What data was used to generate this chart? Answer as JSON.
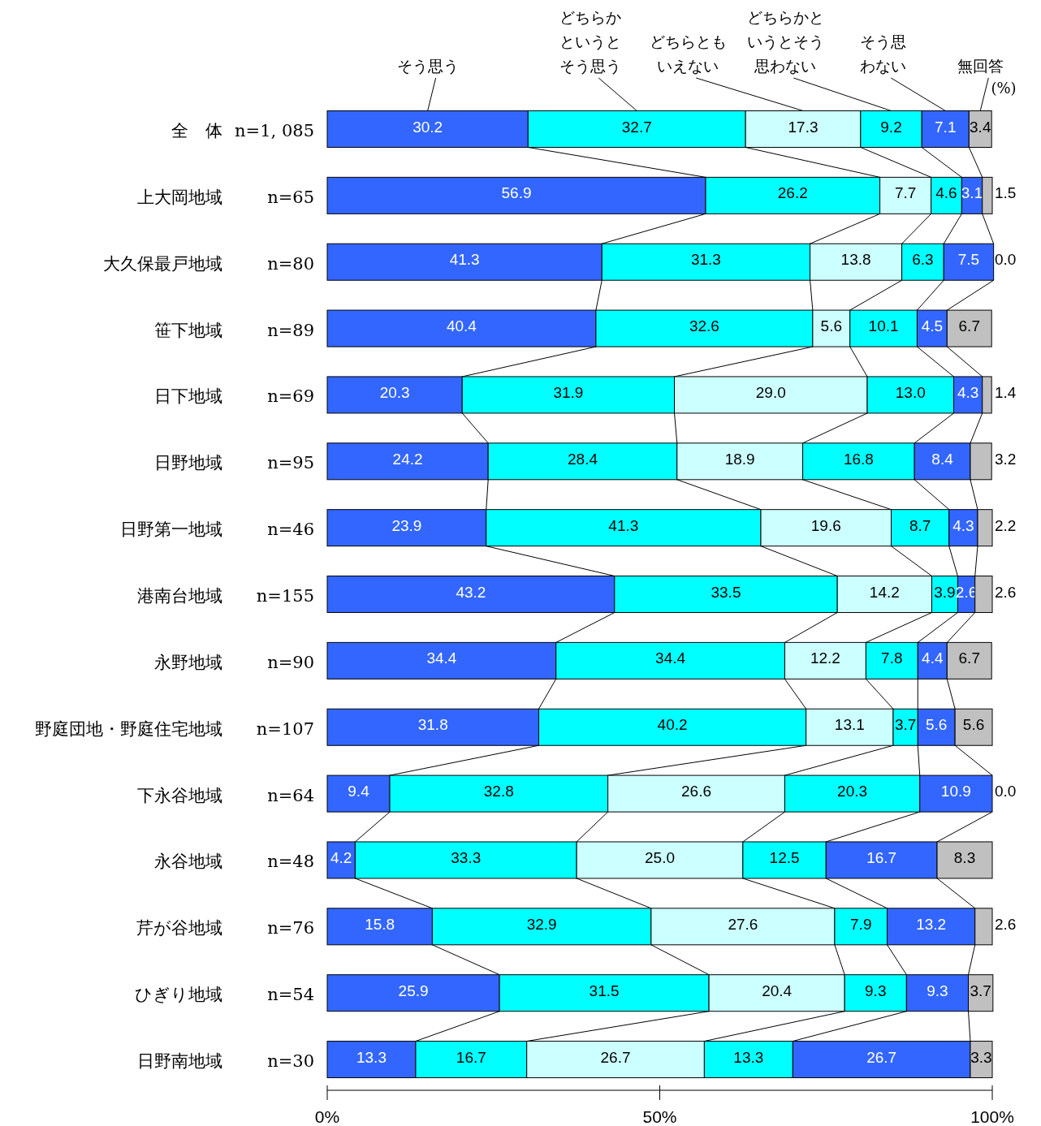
{
  "chart_data": {
    "type": "bar",
    "orientation": "horizontal",
    "stacked": true,
    "categories": [
      "全　体",
      "上大岡地域",
      "大久保最戸地域",
      "笹下地域",
      "日下地域",
      "日野地域",
      "日野第一地域",
      "港南台地域",
      "永野地域",
      "野庭団地・野庭住宅地域",
      "下永谷地域",
      "永谷地域",
      "芹が谷地域",
      "ひぎり地域",
      "日野南地域"
    ],
    "xlim": [
      0,
      100
    ],
    "xticks": [
      {
        "value": 0,
        "label": "0%"
      },
      {
        "value": 50,
        "label": "50%"
      },
      {
        "value": 100,
        "label": "100%"
      }
    ],
    "series": [
      {
        "name": "そう思う",
        "color": "#3366ff",
        "values": [
          30.2,
          56.9,
          41.3,
          40.4,
          20.3,
          24.2,
          23.9,
          43.2,
          34.4,
          31.8,
          9.4,
          4.2,
          15.8,
          25.9,
          13.3
        ],
        "value_labels": [
          "30.2",
          "56.9",
          "41.3",
          "40.4",
          "20.3",
          "24.2",
          "23.9",
          "43.2",
          "34.4",
          "31.8",
          "9.4",
          "4.2",
          "15.8",
          "25.9",
          "13.3"
        ]
      },
      {
        "name": "どちらかというとそう思う",
        "color": "#00ffff",
        "values": [
          32.7,
          26.2,
          31.3,
          32.6,
          31.9,
          28.4,
          41.3,
          33.5,
          34.4,
          40.2,
          32.8,
          33.3,
          32.9,
          31.5,
          16.7
        ],
        "value_labels": [
          "32.7",
          "26.2",
          "31.3",
          "32.6",
          "31.9",
          "28.4",
          "41.3",
          "33.5",
          "34.4",
          "40.2",
          "32.8",
          "33.3",
          "32.9",
          "31.5",
          "16.7"
        ]
      },
      {
        "name": "どちらともいえない",
        "color": "#ccffff",
        "values": [
          17.3,
          7.7,
          13.8,
          5.6,
          29.0,
          18.9,
          19.6,
          14.2,
          12.2,
          13.1,
          26.6,
          25.0,
          27.6,
          20.4,
          26.7
        ],
        "value_labels": [
          "17.3",
          "7.7",
          "13.8",
          "5.6",
          "29.0",
          "18.9",
          "19.6",
          "14.2",
          "12.2",
          "13.1",
          "26.6",
          "25.0",
          "27.6",
          "20.4",
          "26.7"
        ]
      },
      {
        "name": "どちらかというとそう思わない",
        "color": "#00ffff",
        "values": [
          9.2,
          4.6,
          6.3,
          10.1,
          13.0,
          16.8,
          8.7,
          3.9,
          7.8,
          3.7,
          20.3,
          12.5,
          7.9,
          9.3,
          13.3
        ],
        "value_labels": [
          "9.2",
          "4.6",
          "6.3",
          "10.1",
          "13.0",
          "16.8",
          "8.7",
          "3.9",
          "7.8",
          "3.7",
          "20.3",
          "12.5",
          "7.9",
          "9.3",
          "13.3"
        ]
      },
      {
        "name": "そう思わない",
        "color": "#3366ff",
        "values": [
          7.1,
          3.1,
          7.5,
          4.5,
          4.3,
          8.4,
          4.3,
          2.6,
          4.4,
          5.6,
          10.9,
          16.7,
          13.2,
          9.3,
          26.7
        ],
        "value_labels": [
          "7.1",
          "3.1",
          "7.5",
          "4.5",
          "4.3",
          "8.4",
          "4.3",
          "2.6",
          "4.4",
          "5.6",
          "10.9",
          "16.7",
          "13.2",
          "9.3",
          "26.7"
        ]
      },
      {
        "name": "無回答",
        "color": "#c0c0c0",
        "values": [
          3.4,
          1.5,
          0.0,
          6.7,
          1.4,
          3.2,
          2.2,
          2.6,
          6.7,
          5.6,
          0.0,
          8.3,
          2.6,
          3.7,
          3.3
        ],
        "value_labels": [
          "3.4",
          "1.5",
          "0.0",
          "6.7",
          "1.4",
          "3.2",
          "2.2",
          "2.6",
          "6.7",
          "5.6",
          "0.0",
          "8.3",
          "2.6",
          "3.7",
          "3.3"
        ]
      }
    ],
    "annotations": [
      "(%)",
      "n=1, 085",
      "n=65",
      "n=80",
      "n=89",
      "n=69",
      "n=95",
      "n=46",
      "n=155",
      "n=90",
      "n=107",
      "n=64",
      "n=48",
      "n=76",
      "n=54",
      "n=30"
    ]
  }
}
